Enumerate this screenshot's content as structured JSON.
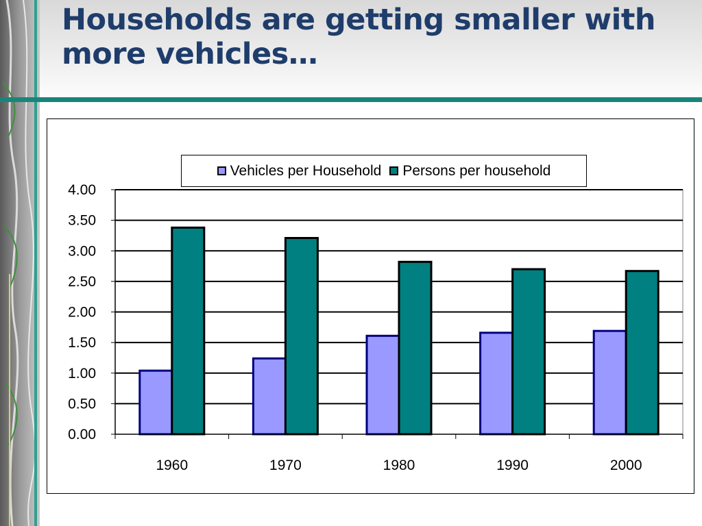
{
  "slide": {
    "title": "Households are getting smaller with more vehicles…"
  },
  "colors": {
    "title": "#1f3d6b",
    "rule": "#18857a",
    "series_vehicles": "#9999ff",
    "series_persons": "#008080",
    "bar_border": "#000080"
  },
  "chart_data": {
    "type": "bar",
    "title": "",
    "xlabel": "",
    "ylabel": "",
    "categories": [
      "1960",
      "1970",
      "1980",
      "1990",
      "2000"
    ],
    "series": [
      {
        "name": "Vehicles per Household",
        "values": [
          1.04,
          1.24,
          1.61,
          1.66,
          1.69
        ]
      },
      {
        "name": "Persons per household",
        "values": [
          3.38,
          3.21,
          2.82,
          2.7,
          2.67
        ]
      }
    ],
    "ylim": [
      0,
      4
    ],
    "yticks": [
      "0.00",
      "0.50",
      "1.00",
      "1.50",
      "2.00",
      "2.50",
      "3.00",
      "3.50",
      "4.00"
    ],
    "grid": true,
    "legend_position": "top"
  }
}
